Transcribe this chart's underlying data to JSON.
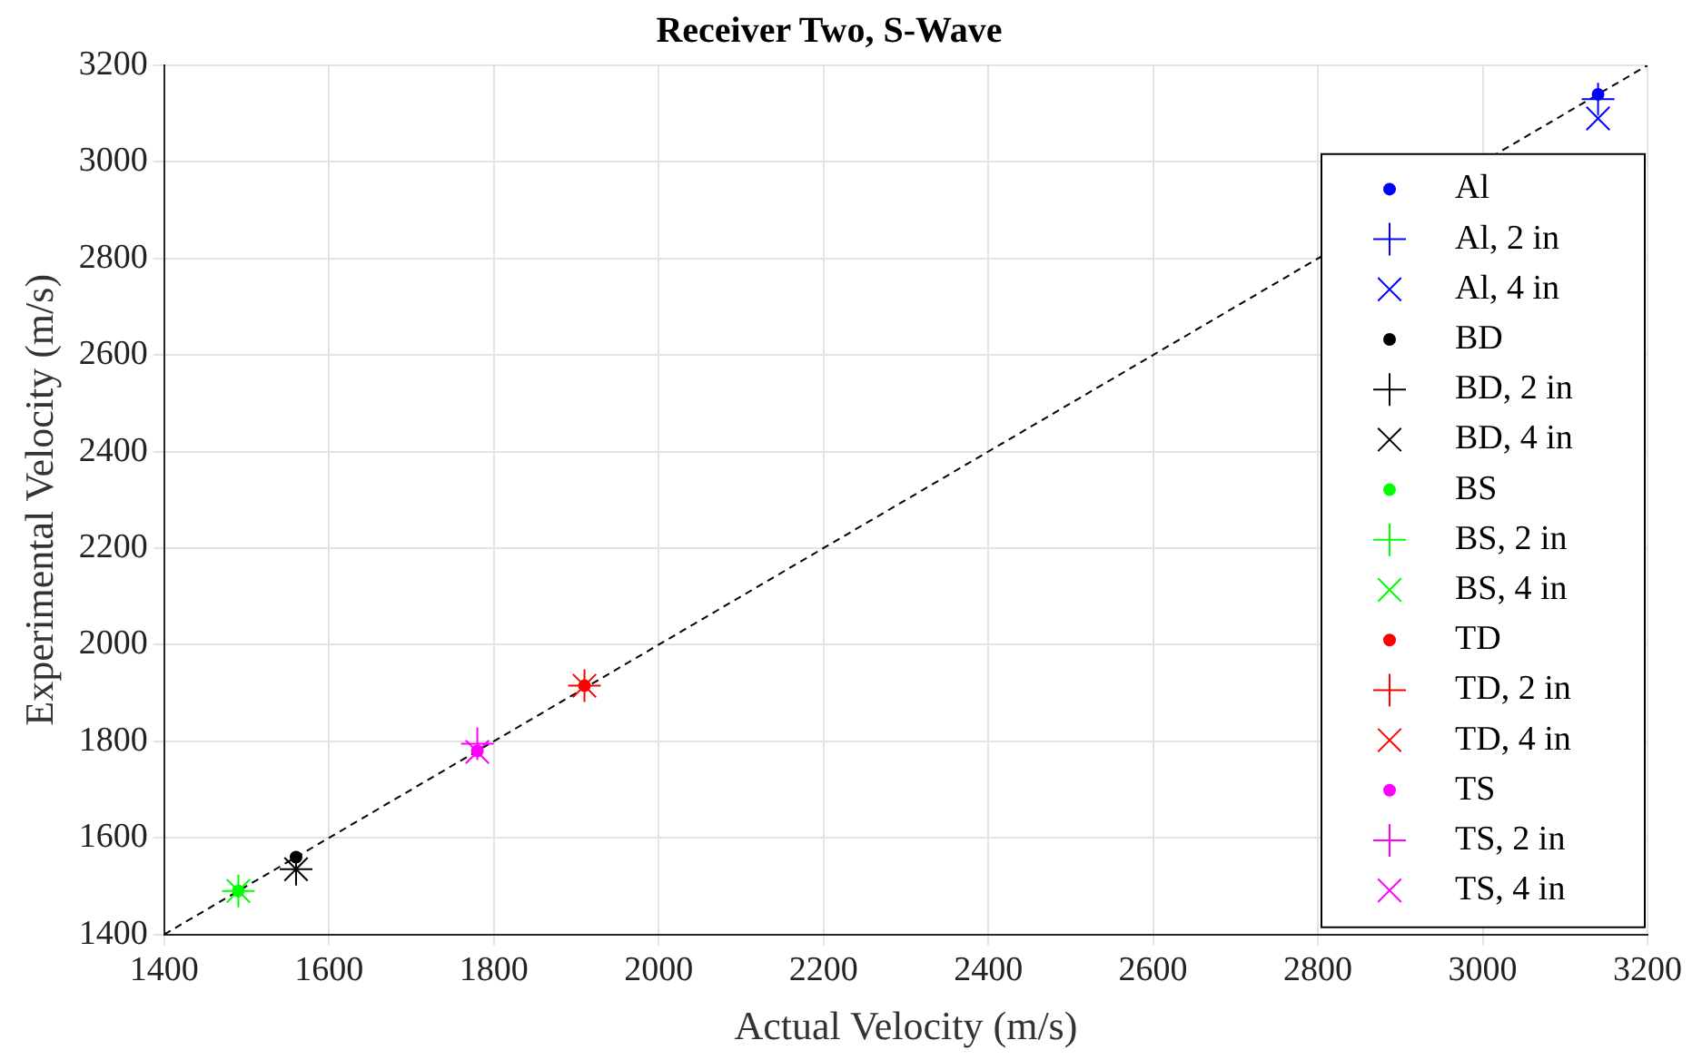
{
  "chart_data": {
    "type": "scatter",
    "title": "Receiver Two, S-Wave",
    "xlabel": "Actual Velocity (m/s)",
    "ylabel": "Experimental Velocity (m/s)",
    "xlim": [
      1400,
      3200
    ],
    "ylim": [
      1400,
      3200
    ],
    "xticks": [
      1400,
      1600,
      1800,
      2000,
      2200,
      2400,
      2600,
      2800,
      3000,
      3200
    ],
    "yticks": [
      1400,
      1600,
      1800,
      2000,
      2200,
      2400,
      2600,
      2800,
      3000,
      3200
    ],
    "grid": true,
    "legend": "right",
    "series": [
      {
        "name": "Al",
        "color": "#0000ff",
        "marker": "circle",
        "x": [
          3140
        ],
        "values": [
          3140
        ]
      },
      {
        "name": "Al, 2 in",
        "color": "#0000ff",
        "marker": "cross",
        "x": [
          3140
        ],
        "values": [
          3130
        ]
      },
      {
        "name": "Al, 4 in",
        "color": "#0000ff",
        "marker": "x",
        "x": [
          3140
        ],
        "values": [
          3090
        ]
      },
      {
        "name": "BD",
        "color": "#000000",
        "marker": "circle",
        "x": [
          1560
        ],
        "values": [
          1560
        ]
      },
      {
        "name": "BD, 2 in",
        "color": "#000000",
        "marker": "cross",
        "x": [
          1560
        ],
        "values": [
          1535
        ]
      },
      {
        "name": "BD, 4 in",
        "color": "#000000",
        "marker": "x",
        "x": [
          1560
        ],
        "values": [
          1535
        ]
      },
      {
        "name": "BS",
        "color": "#00ff00",
        "marker": "circle",
        "x": [
          1490
        ],
        "values": [
          1490
        ]
      },
      {
        "name": "BS, 2 in",
        "color": "#00ff00",
        "marker": "cross",
        "x": [
          1490
        ],
        "values": [
          1490
        ]
      },
      {
        "name": "BS, 4 in",
        "color": "#00ff00",
        "marker": "x",
        "x": [
          1490
        ],
        "values": [
          1490
        ]
      },
      {
        "name": "TD",
        "color": "#ff0000",
        "marker": "circle",
        "x": [
          1910
        ],
        "values": [
          1915
        ]
      },
      {
        "name": "TD, 2 in",
        "color": "#ff0000",
        "marker": "cross",
        "x": [
          1910
        ],
        "values": [
          1915
        ]
      },
      {
        "name": "TD, 4 in",
        "color": "#ff0000",
        "marker": "x",
        "x": [
          1910
        ],
        "values": [
          1915
        ]
      },
      {
        "name": "TS",
        "color": "#ff00ff",
        "marker": "circle",
        "x": [
          1780
        ],
        "values": [
          1780
        ]
      },
      {
        "name": "TS, 2 in",
        "color": "#ff00ff",
        "marker": "cross",
        "x": [
          1780
        ],
        "values": [
          1795
        ]
      },
      {
        "name": "TS, 4 in",
        "color": "#ff00ff",
        "marker": "x",
        "x": [
          1780
        ],
        "values": [
          1778
        ]
      },
      {
        "type": "line",
        "color": "#000000",
        "marker": "none",
        "line_style": "dashed",
        "x": [
          1400,
          3200
        ],
        "values": [
          1400,
          3200
        ]
      }
    ]
  }
}
